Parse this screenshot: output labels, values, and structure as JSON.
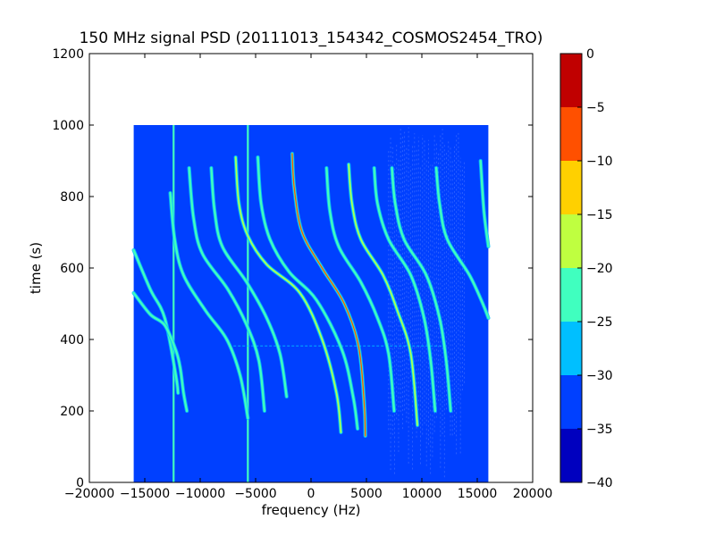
{
  "chart_data": {
    "type": "heatmap",
    "title": "150 MHz signal PSD (20111013_154342_COSMOS2454_TRO)",
    "xlabel": "frequency (Hz)",
    "ylabel": "time (s)",
    "xlim": [
      -20000,
      20000
    ],
    "ylim": [
      0,
      1200
    ],
    "x_ticks": [
      -20000,
      -15000,
      -10000,
      -5000,
      0,
      5000,
      10000,
      15000,
      20000
    ],
    "x_tick_labels": [
      "−20000",
      "−15000",
      "−10000",
      "−5000",
      "0",
      "5000",
      "10000",
      "15000",
      "20000"
    ],
    "y_ticks": [
      0,
      200,
      400,
      600,
      800,
      1000,
      1200
    ],
    "y_tick_labels": [
      "0",
      "200",
      "400",
      "600",
      "800",
      "1000",
      "1200"
    ],
    "data_extent": {
      "x": [
        -16000,
        16000
      ],
      "y": [
        0,
        1000
      ]
    },
    "background_level_db": -33,
    "vertical_lines": [
      {
        "freq_hz": -12400,
        "time_range": [
          0,
          1000
        ],
        "level_db": -25
      },
      {
        "freq_hz": -5700,
        "time_range": [
          0,
          1000
        ],
        "level_db": -25
      }
    ],
    "horizontal_streak": {
      "time_s": 382,
      "freq_range": [
        -7000,
        12000
      ],
      "level_db": -27
    },
    "noise_band": {
      "freq_range": [
        7000,
        14000
      ],
      "level_db": -32
    },
    "doppler_traces": [
      {
        "peak_db": -22,
        "points": [
          [
            -16000,
            650
          ],
          [
            -14500,
            540
          ],
          [
            -13200,
            460
          ],
          [
            -12200,
            300
          ],
          [
            -12000,
            250
          ]
        ]
      },
      {
        "peak_db": -22,
        "points": [
          [
            -16000,
            530
          ],
          [
            -14500,
            470
          ],
          [
            -13200,
            440
          ],
          [
            -12200,
            370
          ],
          [
            -11800,
            320
          ],
          [
            -11500,
            250
          ],
          [
            -11200,
            200
          ]
        ]
      },
      {
        "peak_db": -27,
        "points": [
          [
            -12700,
            810
          ],
          [
            -12300,
            680
          ],
          [
            -11500,
            580
          ],
          [
            -9500,
            480
          ],
          [
            -7600,
            400
          ],
          [
            -6400,
            300
          ],
          [
            -5700,
            180
          ]
        ]
      },
      {
        "peak_db": -24,
        "points": [
          [
            -11000,
            880
          ],
          [
            -10600,
            740
          ],
          [
            -9800,
            640
          ],
          [
            -7500,
            540
          ],
          [
            -5800,
            440
          ],
          [
            -4700,
            340
          ],
          [
            -4200,
            200
          ]
        ]
      },
      {
        "peak_db": -27,
        "points": [
          [
            -9000,
            880
          ],
          [
            -8700,
            760
          ],
          [
            -8000,
            660
          ],
          [
            -5800,
            560
          ],
          [
            -4000,
            460
          ],
          [
            -2800,
            360
          ],
          [
            -2200,
            240
          ]
        ]
      },
      {
        "peak_db": -19,
        "points": [
          [
            -6800,
            910
          ],
          [
            -6500,
            780
          ],
          [
            -5700,
            690
          ],
          [
            -4000,
            610
          ],
          [
            -1000,
            530
          ],
          [
            1000,
            400
          ],
          [
            2300,
            250
          ],
          [
            2700,
            140
          ]
        ]
      },
      {
        "peak_db": -21,
        "points": [
          [
            -4800,
            910
          ],
          [
            -4500,
            780
          ],
          [
            -3700,
            680
          ],
          [
            -2000,
            590
          ],
          [
            500,
            510
          ],
          [
            2800,
            370
          ],
          [
            3800,
            240
          ],
          [
            4200,
            150
          ]
        ]
      },
      {
        "peak_db": -9,
        "points": [
          [
            -1700,
            920
          ],
          [
            -1500,
            820
          ],
          [
            -800,
            700
          ],
          [
            1000,
            600
          ],
          [
            3000,
            500
          ],
          [
            4300,
            380
          ],
          [
            4800,
            220
          ],
          [
            4900,
            130
          ]
        ]
      },
      {
        "peak_db": -23,
        "points": [
          [
            1400,
            880
          ],
          [
            1700,
            760
          ],
          [
            2500,
            660
          ],
          [
            4500,
            560
          ],
          [
            6000,
            460
          ],
          [
            7000,
            360
          ],
          [
            7500,
            200
          ]
        ]
      },
      {
        "peak_db": -19,
        "points": [
          [
            3400,
            890
          ],
          [
            3700,
            780
          ],
          [
            4500,
            680
          ],
          [
            6500,
            580
          ],
          [
            7800,
            480
          ],
          [
            9000,
            360
          ],
          [
            9600,
            160
          ]
        ]
      },
      {
        "peak_db": -28,
        "points": [
          [
            5700,
            880
          ],
          [
            6000,
            780
          ],
          [
            7000,
            680
          ],
          [
            9000,
            580
          ],
          [
            10200,
            460
          ],
          [
            10800,
            340
          ],
          [
            11200,
            200
          ]
        ]
      },
      {
        "peak_db": -27,
        "points": [
          [
            7300,
            880
          ],
          [
            7600,
            780
          ],
          [
            8400,
            680
          ],
          [
            10400,
            580
          ],
          [
            11600,
            460
          ],
          [
            12200,
            340
          ],
          [
            12600,
            200
          ]
        ]
      },
      {
        "peak_db": -26,
        "points": [
          [
            11300,
            880
          ],
          [
            11600,
            780
          ],
          [
            12300,
            680
          ],
          [
            14300,
            580
          ],
          [
            15500,
            500
          ],
          [
            16000,
            460
          ]
        ]
      },
      {
        "peak_db": -24,
        "points": [
          [
            15300,
            900
          ],
          [
            15600,
            760
          ],
          [
            16000,
            660
          ]
        ]
      }
    ],
    "colorbar": {
      "levels": [
        -40,
        -35,
        -30,
        -25,
        -20,
        -15,
        -10,
        -5,
        0
      ],
      "tick_labels": [
        "−40",
        "−35",
        "−30",
        "−25",
        "−20",
        "−15",
        "−10",
        "−5",
        "0"
      ],
      "colors": [
        "#0000bf",
        "#0040ff",
        "#00bfff",
        "#40ffbf",
        "#bfff40",
        "#ffd000",
        "#ff5000",
        "#c00000"
      ]
    }
  }
}
